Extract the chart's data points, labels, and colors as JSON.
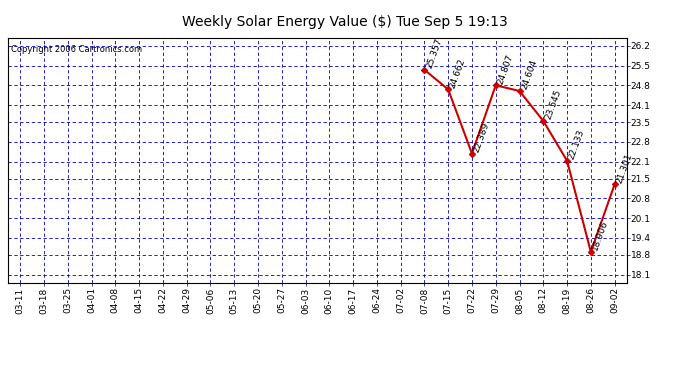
{
  "title_display": "Weekly Solar Energy Value ($) Tue Sep 5 19:13",
  "copyright": "Copyright 2006 Cartronics.com",
  "x_labels": [
    "03-11",
    "03-18",
    "03-25",
    "04-01",
    "04-08",
    "04-15",
    "04-22",
    "04-29",
    "05-06",
    "05-13",
    "05-20",
    "05-27",
    "06-03",
    "06-10",
    "06-17",
    "06-24",
    "07-02",
    "07-08",
    "07-15",
    "07-22",
    "07-29",
    "08-05",
    "08-12",
    "08-19",
    "08-26",
    "09-02"
  ],
  "data_points": [
    {
      "x_label": "07-08",
      "value": 25.357
    },
    {
      "x_label": "07-15",
      "value": 24.662
    },
    {
      "x_label": "07-22",
      "value": 22.389
    },
    {
      "x_label": "07-29",
      "value": 24.807
    },
    {
      "x_label": "08-05",
      "value": 24.604
    },
    {
      "x_label": "08-12",
      "value": 23.545
    },
    {
      "x_label": "08-19",
      "value": 22.133
    },
    {
      "x_label": "08-26",
      "value": 18.906
    },
    {
      "x_label": "09-02",
      "value": 21.301
    }
  ],
  "ylim_min": 17.8,
  "ylim_max": 26.5,
  "yticks": [
    18.1,
    18.8,
    19.4,
    20.1,
    20.8,
    21.5,
    22.1,
    22.8,
    23.5,
    24.1,
    24.8,
    25.5,
    26.2
  ],
  "line_color": "#cc0000",
  "marker_color": "#cc0000",
  "bg_color": "#ffffff",
  "plot_bg_color": "#ffffff",
  "grid_color": "#0000bb",
  "text_color": "#000000",
  "annotation_fontsize": 6.5,
  "tick_fontsize": 6.5,
  "title_fontsize": 10,
  "copyright_fontsize": 6
}
